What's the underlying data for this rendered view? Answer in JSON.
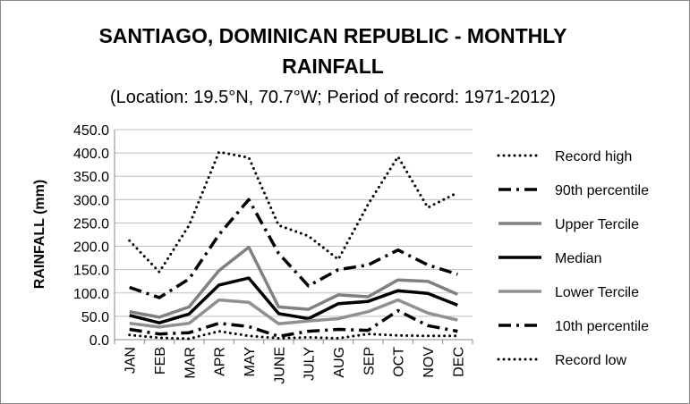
{
  "chart_data": {
    "type": "line",
    "title_line1": "SANTIAGO, DOMINICAN REPUBLIC - MONTHLY",
    "title_line2": "RAINFALL",
    "subtitle": "(Location: 19.5°N, 70.7°W; Period of record: 1971-2012)",
    "ylabel": "RAINFALL (mm)",
    "xlabel": "",
    "ylim": [
      0,
      450
    ],
    "yticks": [
      "0.0",
      "50.0",
      "100.0",
      "150.0",
      "200.0",
      "250.0",
      "300.0",
      "350.0",
      "400.0",
      "450.0"
    ],
    "categories": [
      "JAN",
      "FEB",
      "MAR",
      "APR",
      "MAY",
      "JUNE",
      "JULY",
      "AUG",
      "SEP",
      "OCT",
      "NOV",
      "DEC"
    ],
    "grid": true,
    "legend_position": "right",
    "series": [
      {
        "name": "Record high",
        "style": "dotted",
        "color": "#000000",
        "values": [
          212,
          145,
          245,
          402,
          390,
          245,
          222,
          172,
          290,
          392,
          283,
          315
        ]
      },
      {
        "name": "90th percentile",
        "style": "dashdot",
        "color": "#000000",
        "values": [
          112,
          90,
          130,
          225,
          300,
          185,
          115,
          150,
          160,
          192,
          160,
          140
        ]
      },
      {
        "name": "Upper Tercile",
        "style": "solid",
        "color": "#808080",
        "values": [
          60,
          48,
          70,
          148,
          198,
          70,
          65,
          96,
          92,
          128,
          125,
          97
        ]
      },
      {
        "name": "Median",
        "style": "solid",
        "color": "#000000",
        "values": [
          52,
          36,
          55,
          117,
          132,
          56,
          45,
          77,
          82,
          105,
          99,
          74
        ]
      },
      {
        "name": "Lower Tercile",
        "style": "solid",
        "color": "#909090",
        "values": [
          35,
          27,
          35,
          85,
          80,
          34,
          40,
          45,
          60,
          85,
          57,
          42
        ]
      },
      {
        "name": "10th percentile",
        "style": "dashdot",
        "color": "#000000",
        "values": [
          22,
          12,
          15,
          35,
          28,
          7,
          18,
          22,
          20,
          62,
          30,
          18
        ]
      },
      {
        "name": "Record low",
        "style": "dotted",
        "color": "#000000",
        "values": [
          10,
          4,
          2,
          18,
          8,
          3,
          5,
          3,
          12,
          9,
          8,
          8
        ]
      }
    ]
  }
}
